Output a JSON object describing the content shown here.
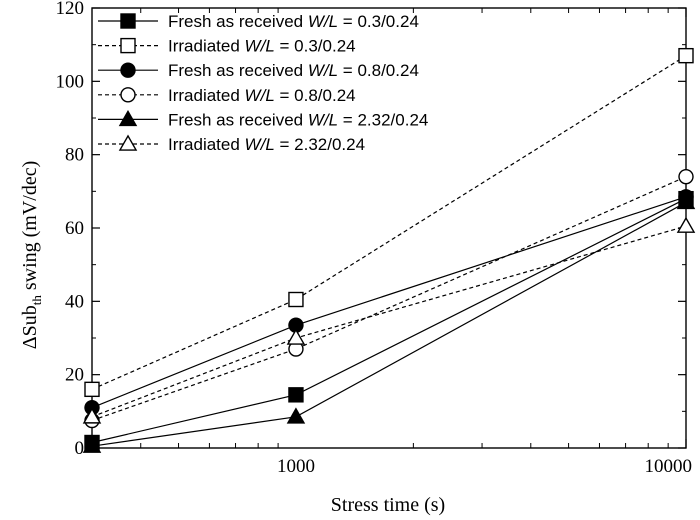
{
  "chart_data": {
    "type": "line",
    "x_scale": "log",
    "xlabel": "Stress time (s)",
    "ylabel": "ΔSub",
    "ylabel_sub": "th",
    "ylabel_tail": " swing (mV/dec)",
    "xlim": [
      300,
      10000
    ],
    "ylim": [
      0,
      120
    ],
    "x_ticks": [
      1000,
      10000
    ],
    "x_tick_labels": [
      "1000",
      "10000"
    ],
    "y_ticks": [
      0,
      20,
      40,
      60,
      80,
      100,
      120
    ],
    "y_tick_labels": [
      "0",
      "20",
      "40",
      "60",
      "80",
      "100",
      "120"
    ],
    "grid": false,
    "legend_position": "top-left",
    "x": [
      300,
      1000,
      10000
    ],
    "series": [
      {
        "name": "Fresh as received W/L = 0.3/0.24",
        "name_prefix": "Fresh as received ",
        "name_wl": "W/L",
        "name_suffix": " = 0.3/0.24",
        "values": [
          1.5,
          14.5,
          68
        ],
        "marker": "square",
        "filled": true,
        "dashed": false
      },
      {
        "name": "Irradiated W/L = 0.3/0.24",
        "name_prefix": "Irradiated ",
        "name_wl": "W/L",
        "name_suffix": " = 0.3/0.24",
        "values": [
          16,
          40.5,
          107
        ],
        "marker": "square",
        "filled": false,
        "dashed": true
      },
      {
        "name": "Fresh as received W/L = 0.8/0.24",
        "name_prefix": "Fresh as received ",
        "name_wl": "W/L",
        "name_suffix": " = 0.8/0.24",
        "values": [
          11,
          33.5,
          68.5
        ],
        "marker": "circle",
        "filled": true,
        "dashed": false
      },
      {
        "name": "Irradiated W/L = 0.8/0.24",
        "name_prefix": "Irradiated ",
        "name_wl": "W/L",
        "name_suffix": " = 0.8/0.24",
        "values": [
          7.5,
          27,
          74
        ],
        "marker": "circle",
        "filled": false,
        "dashed": true
      },
      {
        "name": "Fresh as received W/L = 2.32/0.24",
        "name_prefix": "Fresh as received ",
        "name_wl": "W/L",
        "name_suffix": " = 2.32/0.24",
        "values": [
          0.5,
          8.5,
          67
        ],
        "marker": "triangle",
        "filled": true,
        "dashed": false
      },
      {
        "name": "Irradiated W/L = 2.32/0.24",
        "name_prefix": "Irradiated ",
        "name_wl": "W/L",
        "name_suffix": " = 2.32/0.24",
        "values": [
          8.5,
          30,
          60.5
        ],
        "marker": "triangle",
        "filled": false,
        "dashed": true
      }
    ]
  }
}
